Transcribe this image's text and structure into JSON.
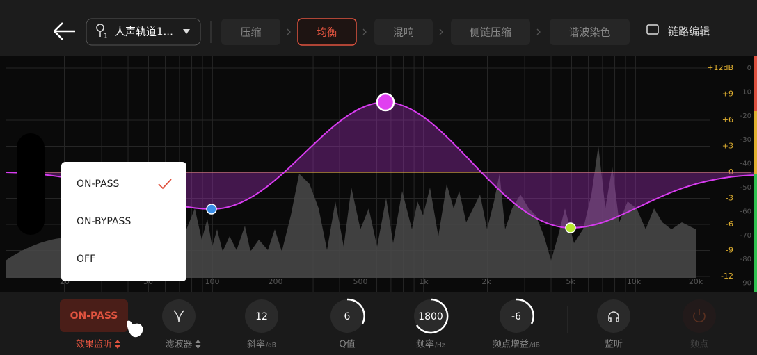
{
  "header": {
    "track": "人声轨道1...",
    "track_number": "1",
    "tabs": [
      "压缩",
      "均衡",
      "混响",
      "侧链压缩",
      "谐波染色"
    ],
    "active_tab": 1,
    "chain_edit": "链路编辑"
  },
  "eq": {
    "db_labels": [
      "+12dB",
      "+9",
      "+6",
      "+3",
      "0",
      "-3",
      "-6",
      "-9",
      "-12"
    ],
    "level_labels": [
      "0",
      "-10",
      "-20",
      "-30",
      "-40",
      "-50",
      "-60",
      "-70",
      "-80",
      "-90"
    ],
    "freq_labels": [
      "20",
      "50",
      "100",
      "200",
      "500",
      "1k",
      "2k",
      "5k",
      "10k",
      "20k"
    ]
  },
  "menu": {
    "items": [
      "ON-PASS",
      "ON-BYPASS",
      "OFF"
    ],
    "selected": 0
  },
  "controls": [
    {
      "label": "效果监听",
      "value": "ON-PASS"
    },
    {
      "label": "滤波器"
    },
    {
      "label": "斜率",
      "unit": "/dB",
      "value": "12"
    },
    {
      "label": "Q值",
      "value": "6"
    },
    {
      "label": "频率",
      "unit": "/Hz",
      "value": "1800"
    },
    {
      "label": "频点增益",
      "unit": "/dB",
      "value": "-6"
    },
    {
      "label": "监听"
    },
    {
      "label": "频点"
    }
  ]
}
